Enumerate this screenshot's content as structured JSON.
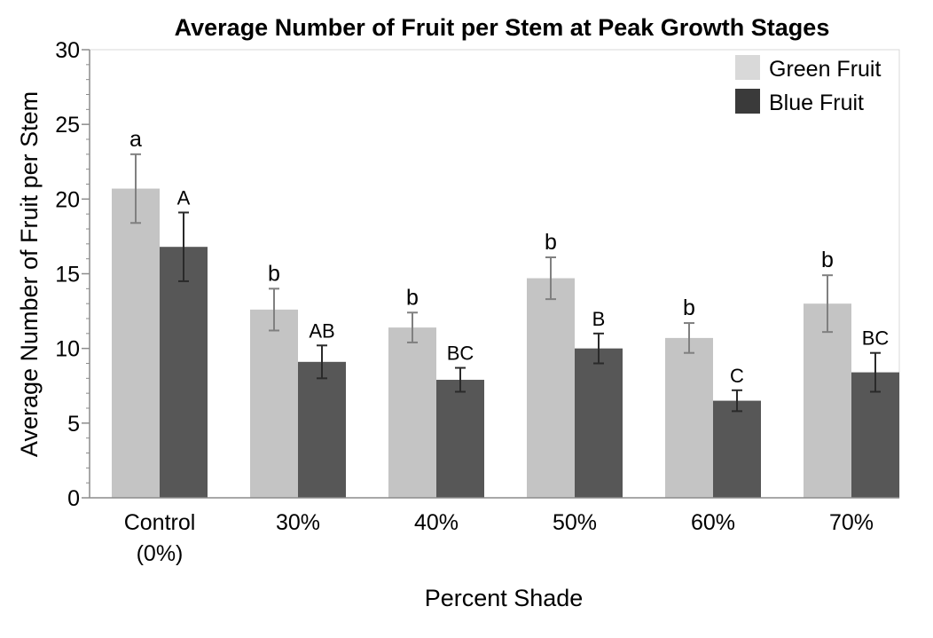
{
  "chart_data": {
    "type": "bar",
    "title": "Average Number of Fruit per Stem at Peak Growth Stages",
    "xlabel": "Percent Shade",
    "ylabel": "Average Number of Fruit per Stem",
    "ylim": [
      0,
      30
    ],
    "yticks": [
      "0",
      "5",
      "10",
      "15",
      "20",
      "25",
      "30"
    ],
    "categories": [
      [
        "Control",
        "(0%)"
      ],
      [
        "30%"
      ],
      [
        "40%"
      ],
      [
        "50%"
      ],
      [
        "60%"
      ],
      [
        "70%"
      ]
    ],
    "series": [
      {
        "name": "Green Fruit",
        "color": "#c4c4c4",
        "error_color": "#808080",
        "values": [
          20.7,
          12.6,
          11.4,
          14.7,
          10.7,
          13.0
        ],
        "error": [
          2.3,
          1.4,
          1.0,
          1.4,
          1.0,
          1.9
        ],
        "labels": [
          "a",
          "b",
          "b",
          "b",
          "b",
          "b"
        ]
      },
      {
        "name": "Blue Fruit",
        "color": "#575757",
        "error_color": "#2a2a2a",
        "values": [
          16.8,
          9.1,
          7.9,
          10.0,
          6.5,
          8.4
        ],
        "error": [
          2.3,
          1.1,
          0.8,
          1.0,
          0.7,
          1.3
        ],
        "labels": [
          "A",
          "AB",
          "BC",
          "B",
          "C",
          "BC"
        ]
      }
    ],
    "legend": [
      {
        "label": "Green Fruit",
        "color": "#d9d9d9"
      },
      {
        "label": "Blue Fruit",
        "color": "#3a3a3a"
      }
    ],
    "legend_position": "top-right",
    "grid": false
  }
}
